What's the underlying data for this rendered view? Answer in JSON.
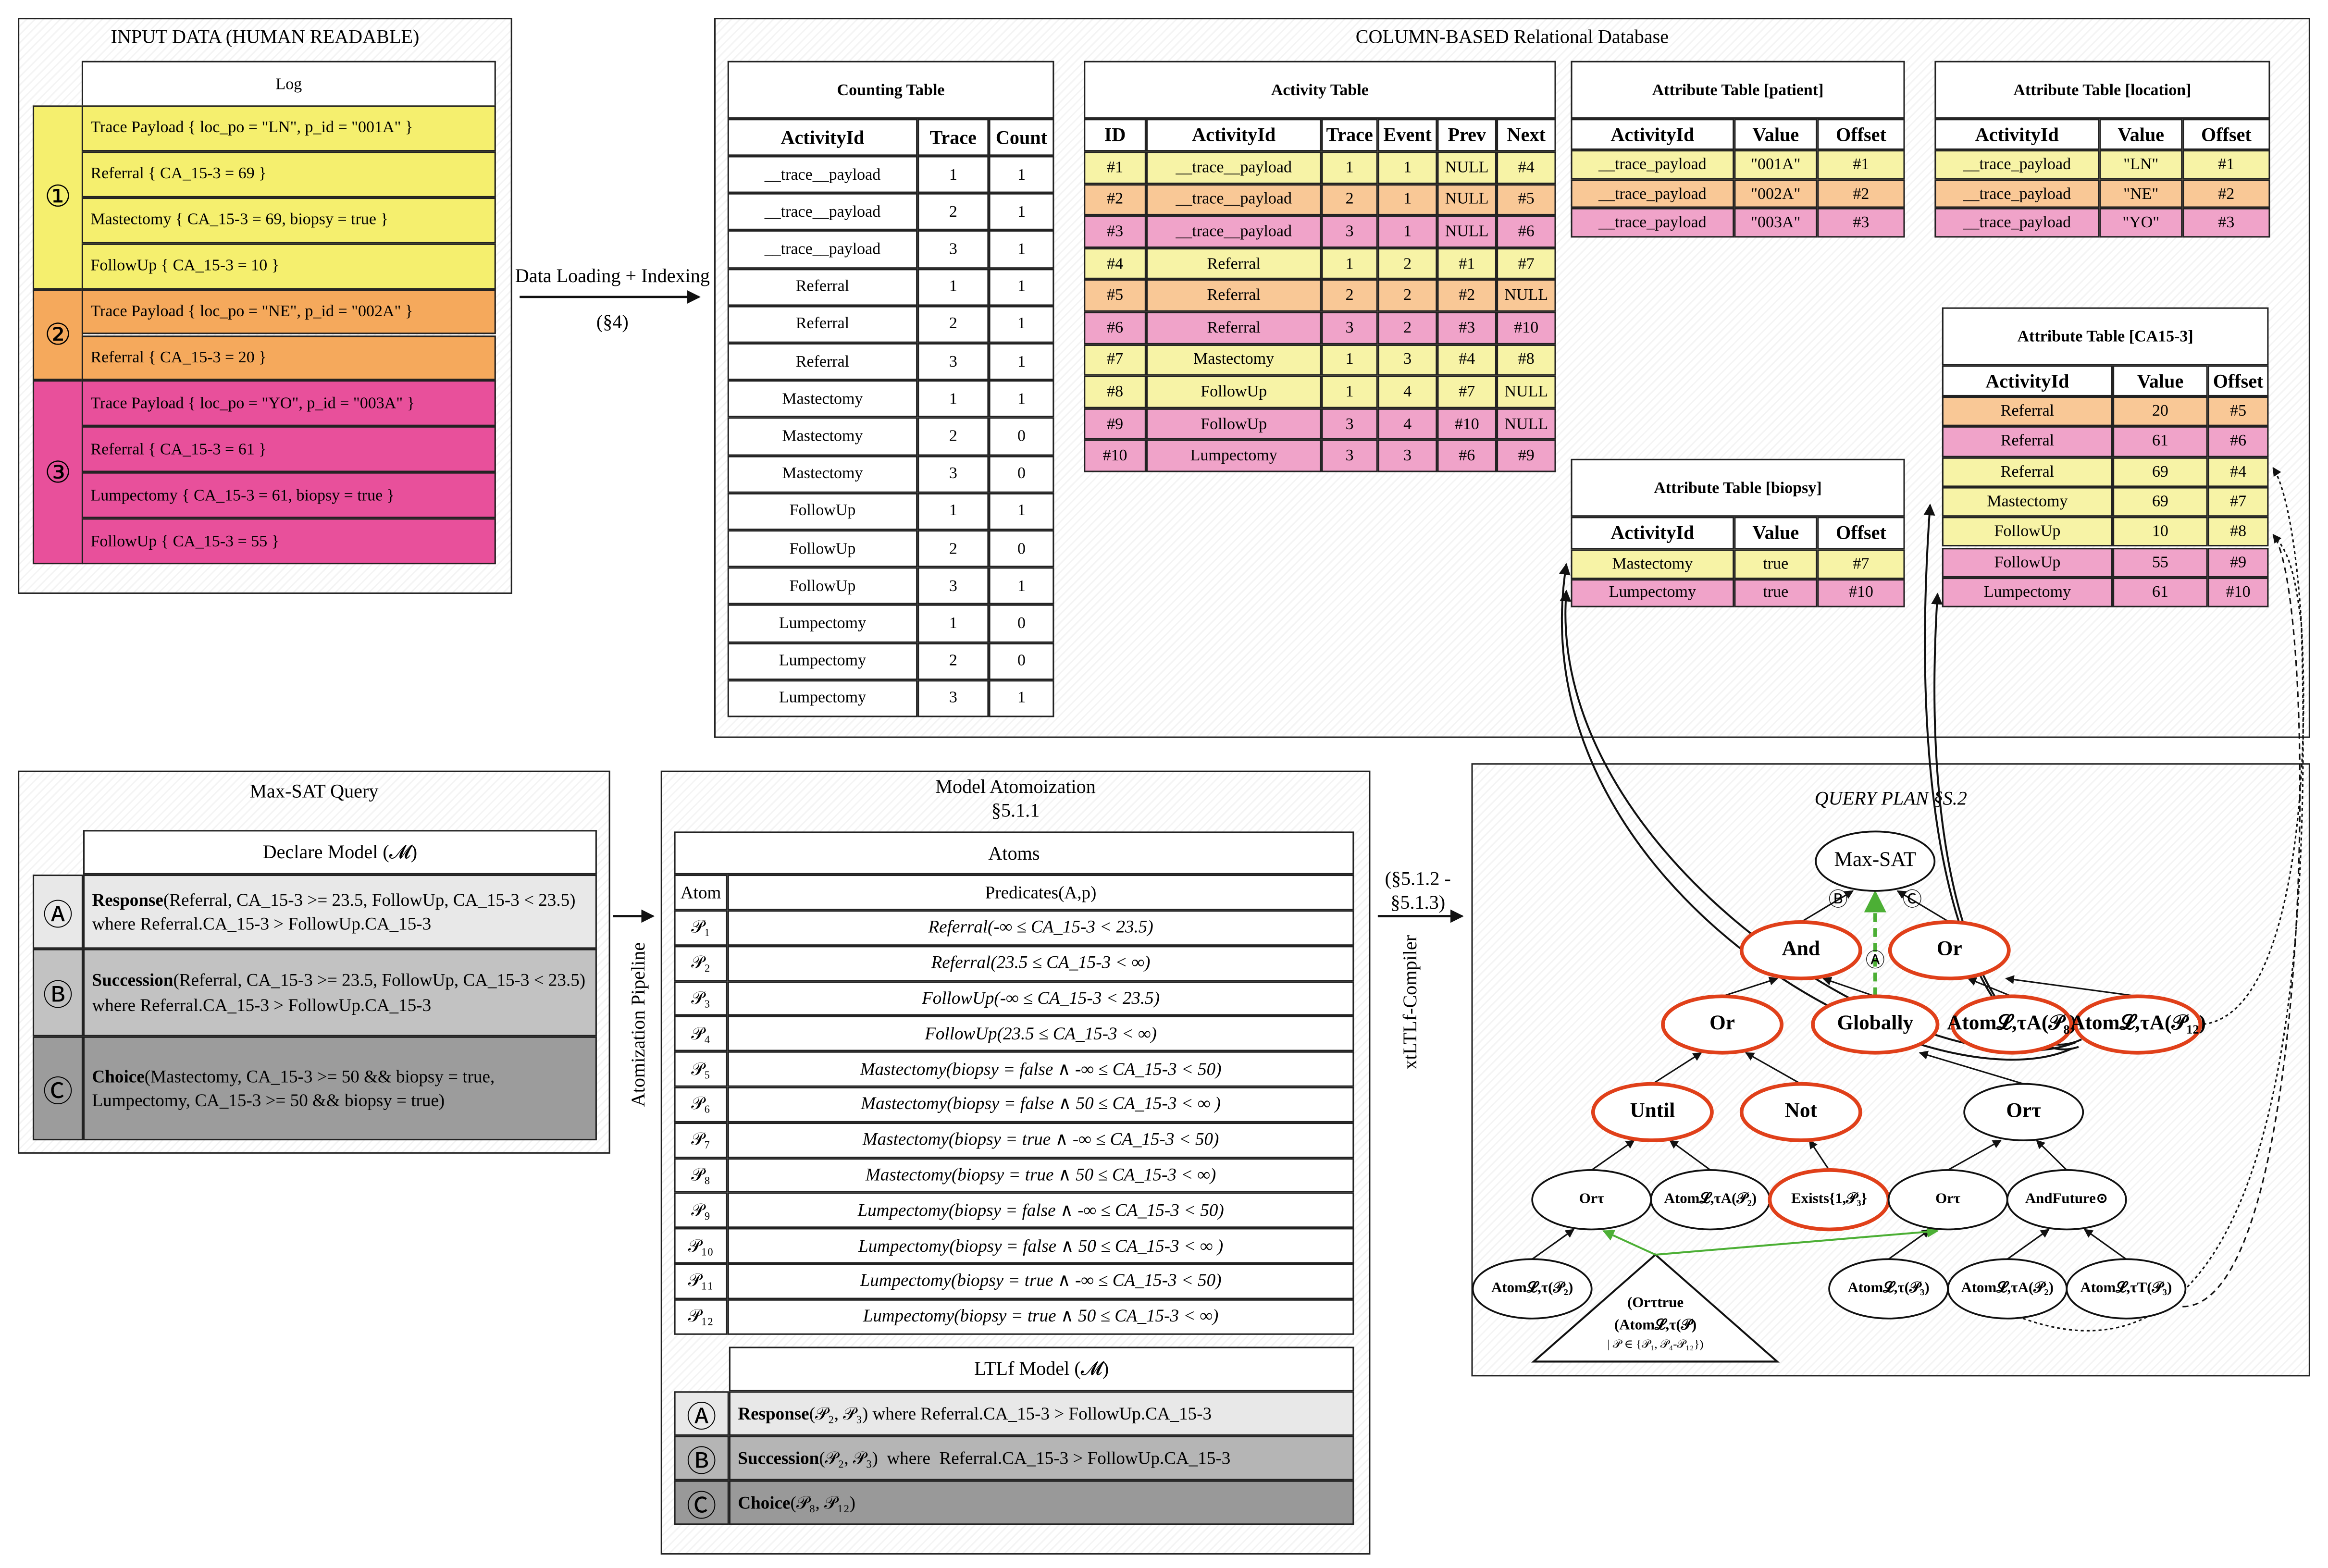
{
  "input_data": {
    "title": "INPUT DATA (HUMAN READABLE)",
    "header": "Log",
    "groups": [
      {
        "label": "①",
        "color": "#f5ef6e",
        "rows": [
          "Trace Payload { loc_po = \"LN\", p_id = \"001A\" }",
          "Referral { CA_15-3 = 69 }",
          "Mastectomy { CA_15-3 = 69, biopsy = true }",
          "FollowUp { CA_15-3 = 10 }"
        ]
      },
      {
        "label": "②",
        "color": "#f5a95c",
        "rows": [
          "Trace Payload { loc_po = \"NE\",  p_id = \"002A\" }",
          "Referral {  CA_15-3 = 20 }"
        ]
      },
      {
        "label": "③",
        "color": "#e8509b",
        "rows": [
          "Trace Payload { loc_po = \"YO\",  p_id = \"003A\" }",
          "Referral { CA_15-3 = 61 }",
          "Lumpectomy { CA_15-3 = 61, biopsy = true }",
          "FollowUp { CA_15-3 = 55 }"
        ]
      }
    ]
  },
  "loading": {
    "label": "Data Loading + Indexing",
    "section": "(§4)"
  },
  "database": {
    "title": "COLUMN-BASED Relational Database",
    "tables": [
      {
        "title": "Counting Table",
        "columns": [
          "ActivityId",
          "Trace",
          "Count"
        ],
        "rows": [
          [
            "__trace__payload",
            1,
            1
          ],
          [
            "__trace__payload",
            2,
            1
          ],
          [
            "__trace__payload",
            3,
            1
          ],
          [
            "Referral",
            1,
            1
          ],
          [
            "Referral",
            2,
            1
          ],
          [
            "Referral",
            3,
            1
          ],
          [
            "Mastectomy",
            1,
            1
          ],
          [
            "Mastectomy",
            2,
            0
          ],
          [
            "Mastectomy",
            3,
            0
          ],
          [
            "FollowUp",
            1,
            1
          ],
          [
            "FollowUp",
            2,
            0
          ],
          [
            "FollowUp",
            3,
            1
          ],
          [
            "Lumpectomy",
            1,
            0
          ],
          [
            "Lumpectomy",
            2,
            0
          ],
          [
            "Lumpectomy",
            3,
            1
          ]
        ],
        "row_colors": [
          "#fff",
          "#fff",
          "#fff",
          "#fff",
          "#fff",
          "#fff",
          "#fff",
          "#fff",
          "#fff",
          "#fff",
          "#fff",
          "#fff",
          "#fff",
          "#fff",
          "#fff"
        ]
      },
      {
        "title": "Activity Table",
        "columns": [
          "ID",
          "ActivityId",
          "Trace",
          "Event",
          "Prev",
          "Next"
        ],
        "rows": [
          [
            "#1",
            "__trace__payload",
            1,
            1,
            "NULL",
            "#4"
          ],
          [
            "#2",
            "__trace__payload",
            2,
            1,
            "NULL",
            "#5"
          ],
          [
            "#3",
            "__trace__payload",
            3,
            1,
            "NULL",
            "#6"
          ],
          [
            "#4",
            "Referral",
            1,
            2,
            "#1",
            "#7"
          ],
          [
            "#5",
            "Referral",
            2,
            2,
            "#2",
            "NULL"
          ],
          [
            "#6",
            "Referral",
            3,
            2,
            "#3",
            "#10"
          ],
          [
            "#7",
            "Mastectomy",
            1,
            3,
            "#4",
            "#8"
          ],
          [
            "#8",
            "FollowUp",
            1,
            4,
            "#7",
            "NULL"
          ],
          [
            "#9",
            "FollowUp",
            3,
            4,
            "#10",
            "NULL"
          ],
          [
            "#10",
            "Lumpectomy",
            3,
            3,
            "#6",
            "#9"
          ]
        ],
        "row_colors": [
          "#f7f3a6",
          "#f9c896",
          "#f0a3c9",
          "#f7f3a6",
          "#f9c896",
          "#f0a3c9",
          "#f7f3a6",
          "#f7f3a6",
          "#f0a3c9",
          "#f0a3c9"
        ]
      },
      {
        "title": "Attribute Table [patient]",
        "columns": [
          "ActivityId",
          "Value",
          "Offset"
        ],
        "rows": [
          [
            "__trace_payload",
            "\"001A\"",
            "#1"
          ],
          [
            "__trace_payload",
            "\"002A\"",
            "#2"
          ],
          [
            "__trace_payload",
            "\"003A\"",
            "#3"
          ]
        ],
        "row_colors": [
          "#f7f3a6",
          "#f9c896",
          "#f0a3c9"
        ]
      },
      {
        "title": "Attribute Table [location]",
        "columns": [
          "ActivityId",
          "Value",
          "Offset"
        ],
        "rows": [
          [
            "__trace_payload",
            "\"LN\"",
            "#1"
          ],
          [
            "__trace_payload",
            "\"NE\"",
            "#2"
          ],
          [
            "__trace_payload",
            "\"YO\"",
            "#3"
          ]
        ],
        "row_colors": [
          "#f7f3a6",
          "#f9c896",
          "#f0a3c9"
        ]
      },
      {
        "title": "Attribute Table [biopsy]",
        "columns": [
          "ActivityId",
          "Value",
          "Offset"
        ],
        "rows": [
          [
            "Mastectomy",
            "true",
            "#7"
          ],
          [
            "Lumpectomy",
            "true",
            "#10"
          ]
        ],
        "row_colors": [
          "#f7f3a6",
          "#f0a3c9"
        ]
      },
      {
        "title": "Attribute Table [CA15-3]",
        "columns": [
          "ActivityId",
          "Value",
          "Offset"
        ],
        "rows": [
          [
            "Referral",
            20,
            "#5"
          ],
          [
            "Referral",
            61,
            "#6"
          ],
          [
            "Referral",
            69,
            "#4"
          ],
          [
            "Mastectomy",
            69,
            "#7"
          ],
          [
            "FollowUp",
            10,
            "#8"
          ],
          [
            "FollowUp",
            55,
            "#9"
          ],
          [
            "Lumpectomy",
            61,
            "#10"
          ]
        ],
        "row_colors": [
          "#f9c896",
          "#f0a3c9",
          "#f7f3a6",
          "#f7f3a6",
          "#f7f3a6",
          "#f0a3c9",
          "#f0a3c9"
        ]
      }
    ]
  },
  "maxsat": {
    "title": "Max-SAT Query",
    "header": "Declare Model (𝓜)",
    "rows": [
      {
        "label": "Ⓐ",
        "name": "Response",
        "text": "(Referral, CA_15-3 >= 23.5, FollowUp, CA_15-3 < 23.5) where Referral.CA_15-3 > FollowUp.CA_15-3",
        "color": "#e8e8e8"
      },
      {
        "label": "Ⓑ",
        "name": "Succession",
        "text": "(Referral, CA_15-3 >= 23.5, FollowUp, CA_15-3 < 23.5) where Referral.CA_15-3 > FollowUp.CA_15-3",
        "color": "#c2c2c2"
      },
      {
        "label": "Ⓒ",
        "name": "Choice",
        "text": "(Mastectomy, CA_15-3 >= 50 && biopsy = true, Lumpectomy, CA_15-3 >= 50 && biopsy = true)",
        "color": "#9c9c9c"
      }
    ]
  },
  "atomization": {
    "title": "Model Atomoization",
    "section": "§5.1.1",
    "pipeline": "Atomization Pipeline",
    "atoms": {
      "title": "Atoms",
      "columns": [
        "Atom",
        "Predicates(A,p)"
      ],
      "rows": [
        [
          "𝒫₁",
          "Referral(-∞ ≤ CA_15-3 < 23.5)"
        ],
        [
          "𝒫₂",
          "Referral(23.5 ≤ CA_15-3 < ∞)"
        ],
        [
          "𝒫₃",
          "FollowUp(-∞ ≤ CA_15-3 < 23.5)"
        ],
        [
          "𝒫₄",
          "FollowUp(23.5 ≤ CA_15-3 < ∞)"
        ],
        [
          "𝒫₅",
          "Mastectomy(biopsy = false ∧ -∞ ≤ CA_15-3 < 50)"
        ],
        [
          "𝒫₆",
          "Mastectomy(biopsy = false ∧ 50 ≤ CA_15-3 < ∞ )"
        ],
        [
          "𝒫₇",
          "Mastectomy(biopsy = true ∧ -∞ ≤ CA_15-3 < 50)"
        ],
        [
          "𝒫₈",
          "Mastectomy(biopsy = true ∧ 50 ≤ CA_15-3 < ∞)"
        ],
        [
          "𝒫₉",
          "Lumpectomy(biopsy = false ∧ -∞ ≤ CA_15-3 < 50)"
        ],
        [
          "𝒫₁₀",
          "Lumpectomy(biopsy = false ∧ 50 ≤ CA_15-3 < ∞ )"
        ],
        [
          "𝒫₁₁",
          "Lumpectomy(biopsy = true ∧ -∞ ≤ CA_15-3 < 50)"
        ],
        [
          "𝒫₁₂",
          "Lumpectomy(biopsy = true ∧ 50 ≤ CA_15-3 < ∞)"
        ]
      ]
    },
    "ltlf": {
      "title": "LTLf Model (𝓜)",
      "rows": [
        {
          "label": "Ⓐ",
          "name": "Response",
          "text": "(𝒫₂, 𝒫₃) where Referral.CA_15-3 > FollowUp.CA_15-3",
          "color": "#e8e8e8"
        },
        {
          "label": "Ⓑ",
          "name": "Succession",
          "text": "(𝒫₂, 𝒫₃)  where  Referral.CA_15-3 > FollowUp.CA_15-3",
          "color": "#b5b5b5"
        },
        {
          "label": "Ⓒ",
          "name": "Choice",
          "text": "(𝒫₈, 𝒫₁₂)",
          "color": "#999999"
        }
      ]
    }
  },
  "compiler": {
    "section": [
      "(§5.1.2 -",
      "§5.1.3)"
    ],
    "label": "xtLTLf-Compiler"
  },
  "query_plan": {
    "title": "QUERY PLAN §S.2",
    "nodes": [
      "Max-SAT",
      "And",
      "Or",
      "Or",
      "Globally",
      "Atom𝓛,τA(𝒫₈)",
      "Atom𝓛,τA(𝒫₁₂)",
      "Until",
      "Not",
      "Orτ",
      "Orτ",
      "Atom𝓛,τA(𝒫₂)",
      "Exists{1,𝒫₃}",
      "Orτ",
      "AndFuture⊙",
      "Atom𝓛,τ(𝒫₂)",
      "Atom𝓛,τ(𝒫₃)",
      "Atom𝓛,τA(𝒫₂)",
      "Atom𝓛,τT(𝒫₃)"
    ],
    "edge_labels": [
      "Ⓑ",
      "Ⓒ",
      "Ⓐ"
    ],
    "group_node": [
      "(Orτtrue",
      "(Atom𝓛,τ(𝒫)",
      "| 𝒫 ∈ {𝒫₁, 𝒫₄-𝒫₁₂})"
    ]
  }
}
